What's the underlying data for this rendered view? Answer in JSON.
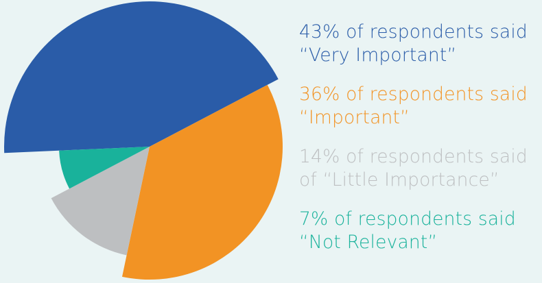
{
  "chart_data": {
    "type": "pie",
    "style": "exploded",
    "slices": [
      {
        "label": "Very Important",
        "value": 43,
        "color": "#2a5ca8",
        "line1": "43% of respondents said",
        "line2": "“Very Important”"
      },
      {
        "label": "Important",
        "value": 36,
        "color": "#f29324",
        "line1": "36% of respondents said",
        "line2": "“Important”"
      },
      {
        "label": "Little Importance",
        "value": 14,
        "color": "#bdbfc1",
        "line1": "14% of respondents said",
        "line2": "of “Little Importance”"
      },
      {
        "label": "Not Relevant",
        "value": 7,
        "color": "#19b29b",
        "line1": "7% of respondents said",
        "line2": "“Not Relevant”"
      }
    ],
    "legend_position": "right"
  }
}
